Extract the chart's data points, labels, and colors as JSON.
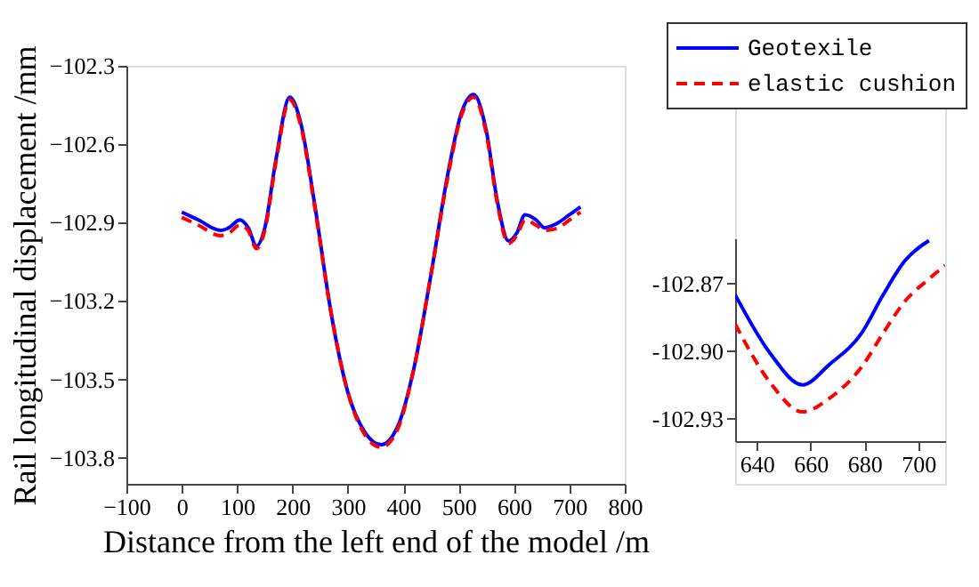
{
  "chart_data": [
    {
      "type": "line",
      "xlabel": "Distance from the left end of the model /m",
      "ylabel": "Rail longitudinal displacement /mm",
      "xlim": [
        -100,
        800
      ],
      "xticks": [
        -100,
        0,
        100,
        200,
        300,
        400,
        500,
        600,
        700,
        800
      ],
      "ylim": [
        -103.9,
        -102.3
      ],
      "yticks": [
        -102.3,
        -102.6,
        -102.9,
        -103.2,
        -103.5,
        -103.8
      ],
      "grid": false,
      "legend": "top right",
      "x": [
        0,
        30,
        70,
        85,
        105,
        120,
        135,
        150,
        170,
        195,
        215,
        240,
        270,
        300,
        330,
        360,
        390,
        420,
        450,
        480,
        505,
        527,
        550,
        570,
        590,
        605,
        620,
        640,
        655,
        680,
        700,
        720
      ],
      "series": [
        {
          "name": "Geotexile",
          "color": "#0000ff",
          "line_style": "solid",
          "values": [
            -102.86,
            -102.89,
            -102.93,
            -102.92,
            -102.89,
            -102.92,
            -102.99,
            -102.92,
            -102.66,
            -102.42,
            -102.52,
            -102.83,
            -103.25,
            -103.55,
            -103.7,
            -103.75,
            -103.68,
            -103.45,
            -103.1,
            -102.72,
            -102.48,
            -102.41,
            -102.55,
            -102.82,
            -102.97,
            -102.94,
            -102.87,
            -102.89,
            -102.92,
            -102.9,
            -102.87,
            -102.84
          ]
        },
        {
          "name": "elastic cushion",
          "color": "#ff0000",
          "line_style": "dashed",
          "values": [
            -102.88,
            -102.91,
            -102.95,
            -102.94,
            -102.91,
            -102.93,
            -103.0,
            -102.93,
            -102.67,
            -102.43,
            -102.53,
            -102.84,
            -103.25,
            -103.55,
            -103.71,
            -103.76,
            -103.69,
            -103.45,
            -103.1,
            -102.73,
            -102.49,
            -102.42,
            -102.56,
            -102.83,
            -102.98,
            -102.95,
            -102.89,
            -102.91,
            -102.93,
            -102.92,
            -102.89,
            -102.86
          ]
        }
      ]
    },
    {
      "type": "line",
      "xlim": [
        632,
        710
      ],
      "xticks": [
        640,
        660,
        680,
        700
      ],
      "ylim": [
        -102.94,
        -102.85
      ],
      "yticks": [
        {
          "value": -102.87,
          "label": "-102.87"
        },
        {
          "value": -102.9,
          "label": "-102.90"
        },
        {
          "value": -102.93,
          "label": "-102.93"
        }
      ],
      "grid": false,
      "x": [
        632,
        645,
        657,
        667,
        679,
        687,
        695,
        704,
        710
      ],
      "series": [
        {
          "color": "#0000ff",
          "line_style": "solid",
          "values": [
            -102.875,
            -102.901,
            -102.915,
            -102.906,
            -102.892,
            -102.875,
            -102.86,
            -102.851,
            null
          ]
        },
        {
          "color": "#ff0000",
          "line_style": "dashed",
          "values": [
            -102.888,
            -102.914,
            -102.927,
            -102.921,
            -102.907,
            -102.892,
            -102.878,
            -102.868,
            -102.862
          ]
        }
      ]
    }
  ]
}
